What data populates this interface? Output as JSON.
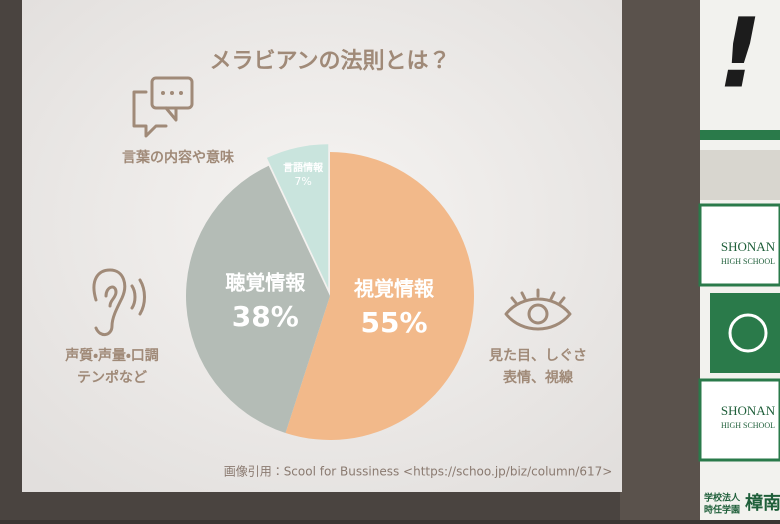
{
  "chart_data": {
    "type": "pie",
    "title": "メラビアンの法則とは？",
    "categories": [
      "視覚情報",
      "聴覚情報",
      "言語情報"
    ],
    "values": [
      55,
      38,
      7
    ],
    "value_labels": [
      "55%",
      "38%",
      "7%"
    ],
    "colors": [
      "#f2b98a",
      "#b4bcb6",
      "#c9e4dd"
    ],
    "annotations": [
      {
        "lines": [
          "言葉の内容や意味"
        ]
      },
      {
        "lines": [
          "声質・声量・口調",
          "テンポなど"
        ]
      },
      {
        "lines": [
          "見た目、しぐさ",
          "表情、視線"
        ]
      }
    ],
    "source": "画像引用：Scool for Bussiness <https://schoo.jp/biz/column/617>"
  },
  "background_sign": {
    "mark": "!",
    "panels": [
      {
        "name": "SHONAN",
        "sub": "HIGH SCHOOL"
      },
      {
        "name": "SHONAN",
        "sub": "HIGH SCHOOL"
      }
    ],
    "footer": [
      "学校法人",
      "時任学園"
    ],
    "school": "樟南"
  }
}
